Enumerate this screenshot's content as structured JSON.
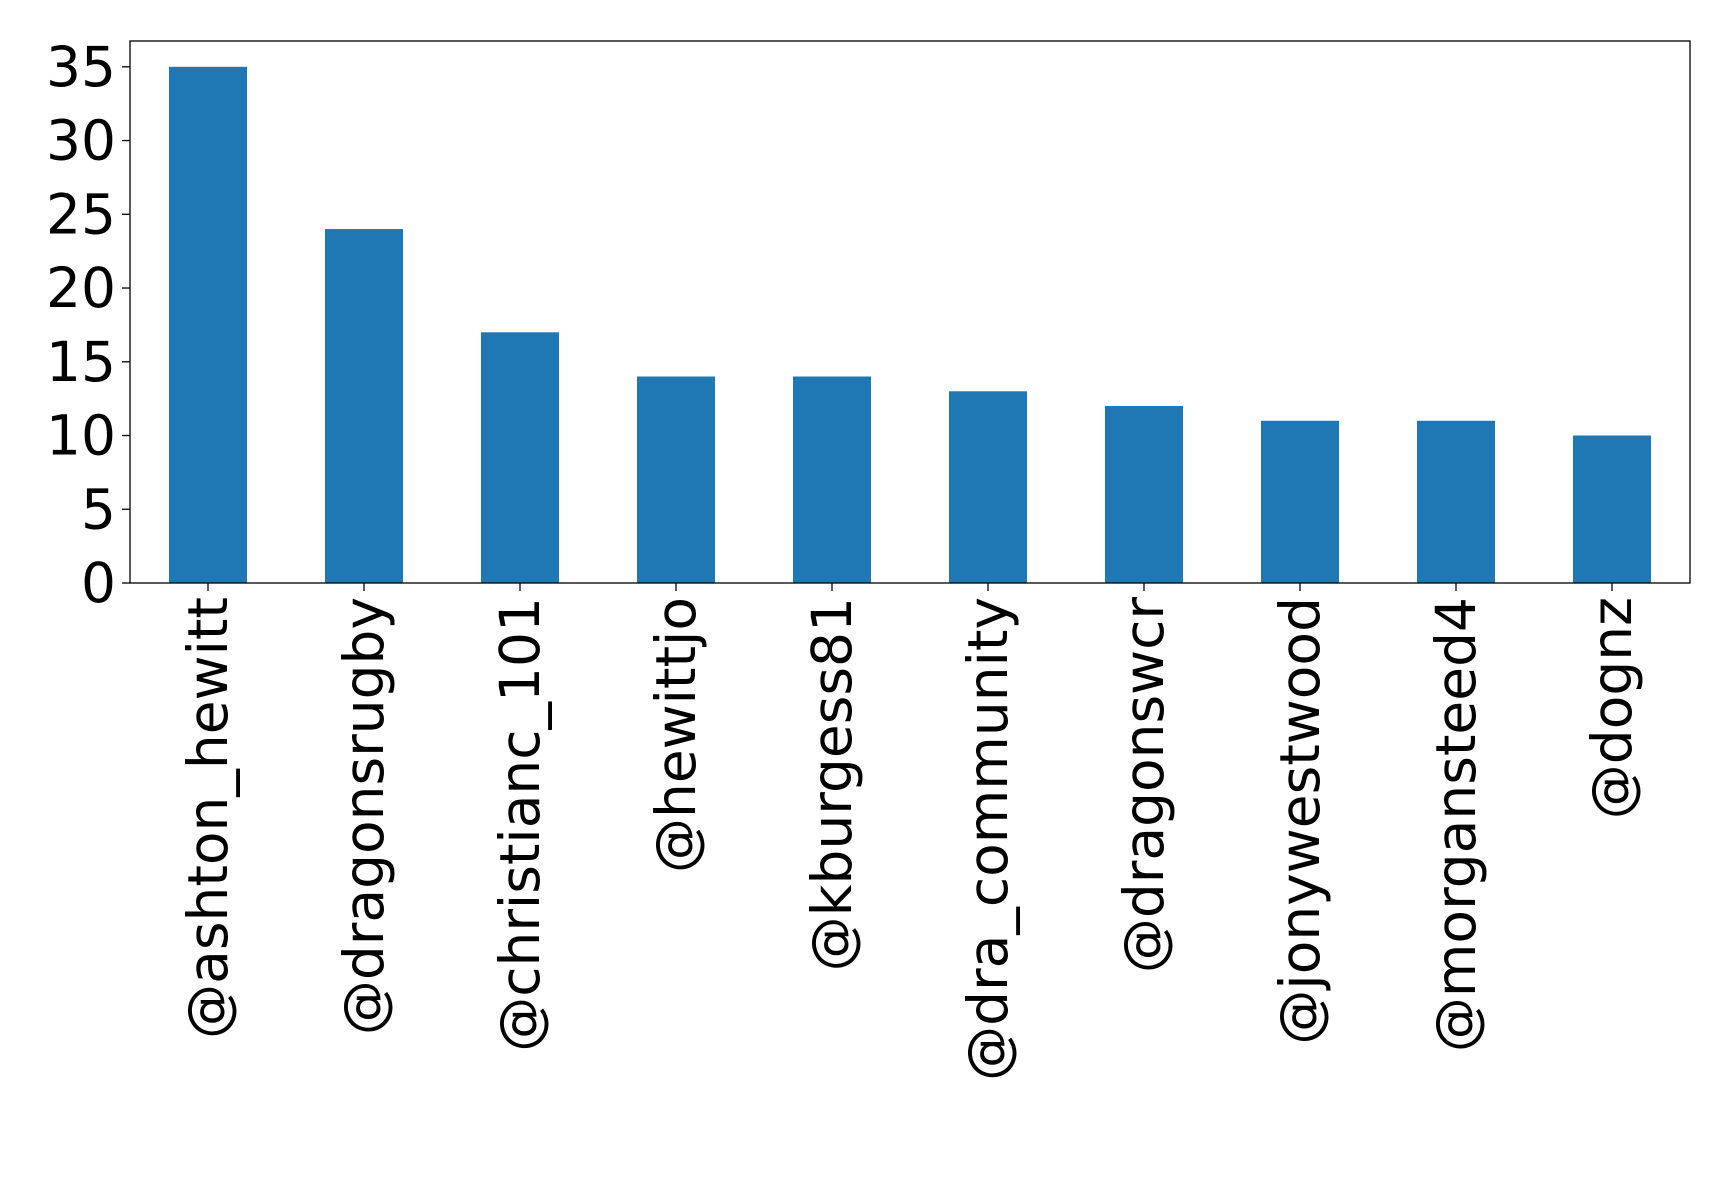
{
  "chart_data": {
    "type": "bar",
    "title": "",
    "xlabel": "",
    "ylabel": "",
    "categories": [
      "@ashton_hewitt",
      "@dragonsrugby",
      "@christianc_101",
      "@hewittjo",
      "@kburgess81",
      "@dra_community",
      "@dragonswcr",
      "@jonywestwood",
      "@morgansteed4",
      "@dognz"
    ],
    "values": [
      35,
      24,
      17,
      14,
      14,
      13,
      12,
      11,
      11,
      10
    ],
    "ylim": [
      0,
      36.75
    ],
    "yticks": [
      "0",
      "5",
      "10",
      "15",
      "20",
      "25",
      "30",
      "35"
    ],
    "bar_color": "#1f77b4",
    "grid": false,
    "legend": "none"
  }
}
